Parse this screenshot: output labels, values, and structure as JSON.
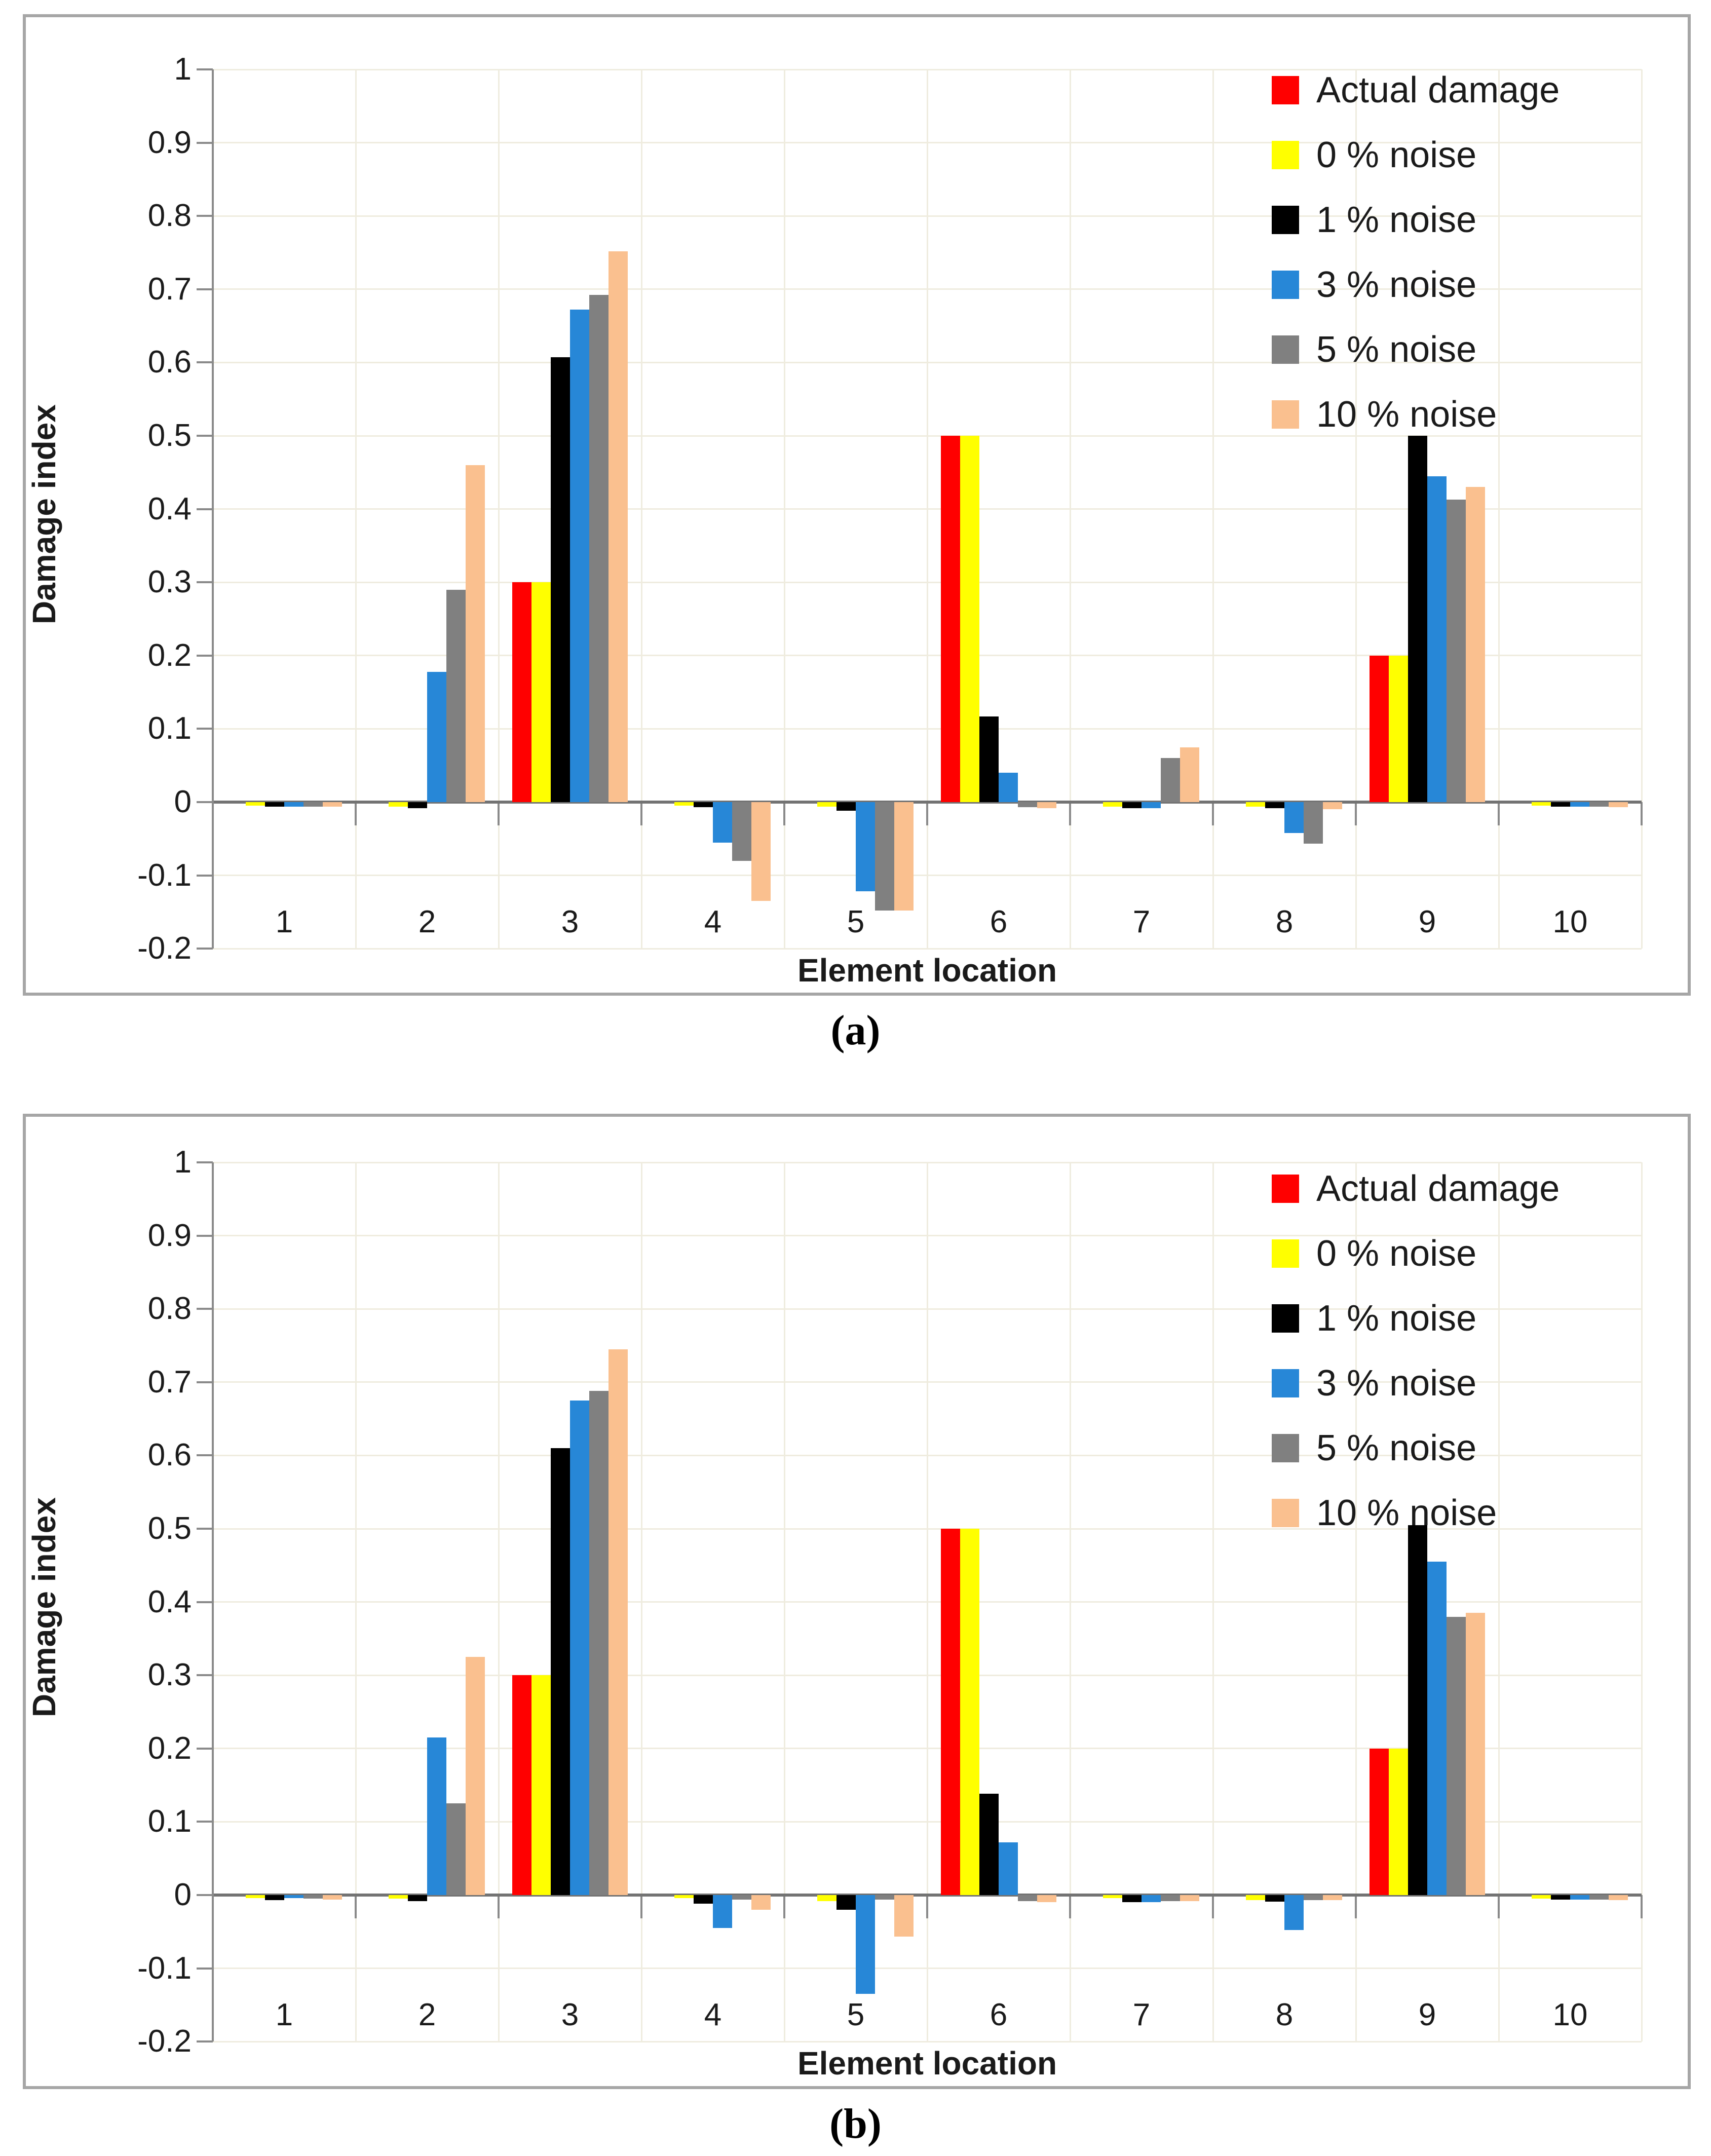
{
  "figure": {
    "captions": [
      "(a)",
      "(b)"
    ],
    "colors": {
      "actual_damage": "#ff0000",
      "noise_0": "#ffff00",
      "noise_1": "#000000",
      "noise_3": "#2787d7",
      "noise_5": "#808080",
      "noise_10": "#fac08f",
      "grid": "#efecdf",
      "axis": "#8a8a8a",
      "zero_line": "#737373",
      "box_border": "#a6a6a6",
      "text": "#1a1a1a",
      "background": "#ffffff"
    }
  },
  "chart_data": [
    {
      "type": "bar",
      "panel": "(a)",
      "title": "",
      "xlabel": "Element location",
      "ylabel": "Damage index",
      "ylim": [
        -0.2,
        1.0
      ],
      "grid": true,
      "legend_position": "upper-right",
      "y_tick_labels": [
        "1",
        "0.9",
        "0.8",
        "0.7",
        "0.6",
        "0.5",
        "0.4",
        "0.3",
        "0.2",
        "0.1",
        "0",
        "-0.1",
        "-0.2"
      ],
      "categories": [
        "1",
        "2",
        "3",
        "4",
        "5",
        "6",
        "7",
        "8",
        "9",
        "10"
      ],
      "series": [
        {
          "name": "Actual damage",
          "color": "#ff0000",
          "values": [
            0,
            0,
            0.3,
            0,
            0,
            0.5,
            0,
            0,
            0.2,
            0
          ]
        },
        {
          "name": "0 % noise",
          "color": "#ffff00",
          "values": [
            -0.005,
            -0.006,
            0.3,
            -0.005,
            -0.006,
            0.5,
            -0.006,
            -0.006,
            0.2,
            -0.005
          ]
        },
        {
          "name": "1 % noise",
          "color": "#000000",
          "values": [
            -0.006,
            -0.008,
            0.607,
            -0.007,
            -0.012,
            0.117,
            -0.008,
            -0.008,
            0.5,
            -0.006
          ]
        },
        {
          "name": "3 % noise",
          "color": "#2787d7",
          "values": [
            -0.006,
            0.178,
            0.672,
            -0.055,
            -0.122,
            0.04,
            -0.008,
            -0.042,
            0.445,
            -0.006
          ]
        },
        {
          "name": "5 % noise",
          "color": "#808080",
          "values": [
            -0.006,
            0.29,
            0.692,
            -0.08,
            -0.148,
            -0.007,
            0.06,
            -0.057,
            0.413,
            -0.006
          ]
        },
        {
          "name": "10 % noise",
          "color": "#fac08f",
          "values": [
            -0.006,
            0.46,
            0.752,
            -0.135,
            -0.148,
            -0.008,
            0.075,
            -0.01,
            0.43,
            -0.007
          ]
        }
      ]
    },
    {
      "type": "bar",
      "panel": "(b)",
      "title": "",
      "xlabel": "Element location",
      "ylabel": "Damage index",
      "ylim": [
        -0.2,
        1.0
      ],
      "grid": true,
      "legend_position": "upper-right",
      "y_tick_labels": [
        "1",
        "0.9",
        "0.8",
        "0.7",
        "0.6",
        "0.5",
        "0.4",
        "0.3",
        "0.2",
        "0.1",
        "0",
        "-0.1",
        "-0.2"
      ],
      "categories": [
        "1",
        "2",
        "3",
        "4",
        "5",
        "6",
        "7",
        "8",
        "9",
        "10"
      ],
      "series": [
        {
          "name": "Actual damage",
          "color": "#ff0000",
          "values": [
            0,
            0,
            0.3,
            0,
            0,
            0.5,
            0,
            0,
            0.2,
            0
          ]
        },
        {
          "name": "0 % noise",
          "color": "#ffff00",
          "values": [
            -0.004,
            -0.005,
            0.3,
            -0.004,
            -0.008,
            0.5,
            -0.004,
            -0.007,
            0.2,
            -0.005
          ]
        },
        {
          "name": "1 % noise",
          "color": "#000000",
          "values": [
            -0.007,
            -0.008,
            0.61,
            -0.012,
            -0.02,
            0.138,
            -0.01,
            -0.009,
            0.505,
            -0.006
          ]
        },
        {
          "name": "3 % noise",
          "color": "#2787d7",
          "values": [
            -0.004,
            0.215,
            0.675,
            -0.045,
            -0.135,
            0.072,
            -0.01,
            -0.048,
            0.455,
            -0.006
          ]
        },
        {
          "name": "5 % noise",
          "color": "#808080",
          "values": [
            -0.005,
            0.125,
            0.688,
            -0.006,
            -0.006,
            -0.008,
            -0.008,
            -0.007,
            0.38,
            -0.006
          ]
        },
        {
          "name": "10 % noise",
          "color": "#fac08f",
          "values": [
            -0.006,
            0.325,
            0.745,
            -0.02,
            -0.057,
            -0.01,
            -0.008,
            -0.007,
            0.385,
            -0.007
          ]
        }
      ]
    }
  ]
}
